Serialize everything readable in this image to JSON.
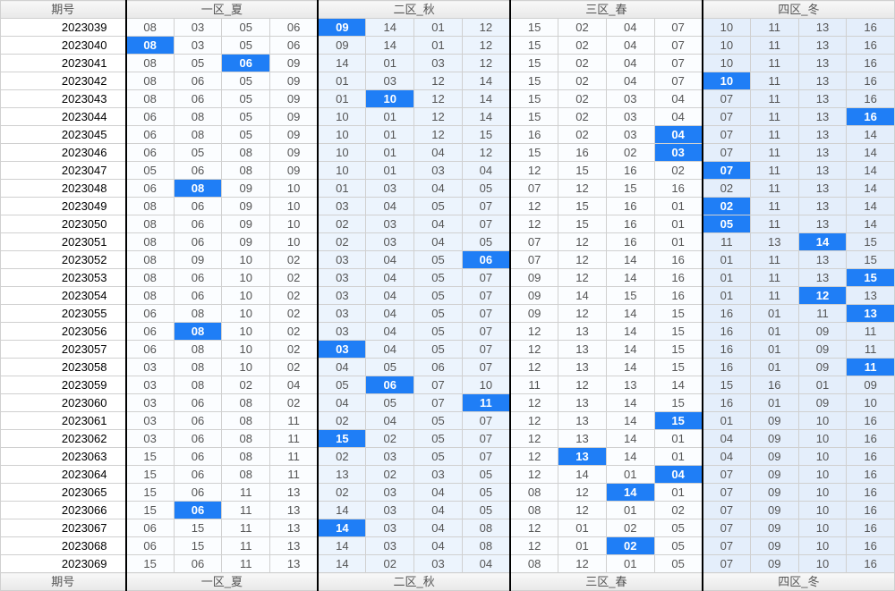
{
  "headers": {
    "period": "期号",
    "zones": [
      "一区_夏",
      "二区_秋",
      "三区_春",
      "四区_冬"
    ]
  },
  "zone_classes": [
    "z1",
    "z2",
    "z3",
    "z4"
  ],
  "colors": {
    "header_bg_top": "#f8f8f8",
    "header_bg_bottom": "#e8e8e8",
    "border": "#d0d0d0",
    "zone_sep": "#000000",
    "z1_bg": "#fbfdff",
    "z2_bg": "#ecf4fd",
    "z3_bg": "#fbfdff",
    "z4_bg": "#e4eefb",
    "highlight_bg": "#1f7ef6",
    "highlight_text": "#ffffff",
    "text": "#555555"
  },
  "rows": [
    {
      "p": "2023039",
      "c": [
        "08",
        "03",
        "05",
        "06",
        "09",
        "14",
        "01",
        "12",
        "15",
        "02",
        "04",
        "07",
        "10",
        "11",
        "13",
        "16"
      ],
      "h": [
        4
      ]
    },
    {
      "p": "2023040",
      "c": [
        "08",
        "03",
        "05",
        "06",
        "09",
        "14",
        "01",
        "12",
        "15",
        "02",
        "04",
        "07",
        "10",
        "11",
        "13",
        "16"
      ],
      "h": [
        0
      ]
    },
    {
      "p": "2023041",
      "c": [
        "08",
        "05",
        "06",
        "09",
        "14",
        "01",
        "03",
        "12",
        "15",
        "02",
        "04",
        "07",
        "10",
        "11",
        "13",
        "16"
      ],
      "h": [
        2
      ]
    },
    {
      "p": "2023042",
      "c": [
        "08",
        "06",
        "05",
        "09",
        "01",
        "03",
        "12",
        "14",
        "15",
        "02",
        "04",
        "07",
        "10",
        "11",
        "13",
        "16"
      ],
      "h": [
        12
      ]
    },
    {
      "p": "2023043",
      "c": [
        "08",
        "06",
        "05",
        "09",
        "01",
        "10",
        "12",
        "14",
        "15",
        "02",
        "03",
        "04",
        "07",
        "11",
        "13",
        "16"
      ],
      "h": [
        5
      ]
    },
    {
      "p": "2023044",
      "c": [
        "06",
        "08",
        "05",
        "09",
        "10",
        "01",
        "12",
        "14",
        "15",
        "02",
        "03",
        "04",
        "07",
        "11",
        "13",
        "16"
      ],
      "h": [
        15
      ]
    },
    {
      "p": "2023045",
      "c": [
        "06",
        "08",
        "05",
        "09",
        "10",
        "01",
        "12",
        "15",
        "16",
        "02",
        "03",
        "04",
        "07",
        "11",
        "13",
        "14"
      ],
      "h": [
        11
      ]
    },
    {
      "p": "2023046",
      "c": [
        "06",
        "05",
        "08",
        "09",
        "10",
        "01",
        "04",
        "12",
        "15",
        "16",
        "02",
        "03",
        "07",
        "11",
        "13",
        "14"
      ],
      "h": [
        11
      ]
    },
    {
      "p": "2023047",
      "c": [
        "05",
        "06",
        "08",
        "09",
        "10",
        "01",
        "03",
        "04",
        "12",
        "15",
        "16",
        "02",
        "07",
        "11",
        "13",
        "14"
      ],
      "h": [
        12
      ]
    },
    {
      "p": "2023048",
      "c": [
        "06",
        "08",
        "09",
        "10",
        "01",
        "03",
        "04",
        "05",
        "07",
        "12",
        "15",
        "16",
        "02",
        "11",
        "13",
        "14"
      ],
      "h": [
        1
      ]
    },
    {
      "p": "2023049",
      "c": [
        "08",
        "06",
        "09",
        "10",
        "03",
        "04",
        "05",
        "07",
        "12",
        "15",
        "16",
        "01",
        "02",
        "11",
        "13",
        "14"
      ],
      "h": [
        12
      ]
    },
    {
      "p": "2023050",
      "c": [
        "08",
        "06",
        "09",
        "10",
        "02",
        "03",
        "04",
        "07",
        "12",
        "15",
        "16",
        "01",
        "05",
        "11",
        "13",
        "14"
      ],
      "h": [
        12
      ]
    },
    {
      "p": "2023051",
      "c": [
        "08",
        "06",
        "09",
        "10",
        "02",
        "03",
        "04",
        "05",
        "07",
        "12",
        "16",
        "01",
        "11",
        "13",
        "14",
        "15"
      ],
      "h": [
        14
      ]
    },
    {
      "p": "2023052",
      "c": [
        "08",
        "09",
        "10",
        "02",
        "03",
        "04",
        "05",
        "06",
        "07",
        "12",
        "14",
        "16",
        "01",
        "11",
        "13",
        "15"
      ],
      "h": [
        7
      ]
    },
    {
      "p": "2023053",
      "c": [
        "08",
        "06",
        "10",
        "02",
        "03",
        "04",
        "05",
        "07",
        "09",
        "12",
        "14",
        "16",
        "01",
        "11",
        "13",
        "15"
      ],
      "h": [
        15
      ]
    },
    {
      "p": "2023054",
      "c": [
        "08",
        "06",
        "10",
        "02",
        "03",
        "04",
        "05",
        "07",
        "09",
        "14",
        "15",
        "16",
        "01",
        "11",
        "12",
        "13"
      ],
      "h": [
        14
      ]
    },
    {
      "p": "2023055",
      "c": [
        "06",
        "08",
        "10",
        "02",
        "03",
        "04",
        "05",
        "07",
        "09",
        "12",
        "14",
        "15",
        "16",
        "01",
        "11",
        "13"
      ],
      "h": [
        15
      ]
    },
    {
      "p": "2023056",
      "c": [
        "06",
        "08",
        "10",
        "02",
        "03",
        "04",
        "05",
        "07",
        "12",
        "13",
        "14",
        "15",
        "16",
        "01",
        "09",
        "11"
      ],
      "h": [
        1
      ]
    },
    {
      "p": "2023057",
      "c": [
        "06",
        "08",
        "10",
        "02",
        "03",
        "04",
        "05",
        "07",
        "12",
        "13",
        "14",
        "15",
        "16",
        "01",
        "09",
        "11"
      ],
      "h": [
        4
      ]
    },
    {
      "p": "2023058",
      "c": [
        "03",
        "08",
        "10",
        "02",
        "04",
        "05",
        "06",
        "07",
        "12",
        "13",
        "14",
        "15",
        "16",
        "01",
        "09",
        "11"
      ],
      "h": [
        15
      ]
    },
    {
      "p": "2023059",
      "c": [
        "03",
        "08",
        "02",
        "04",
        "05",
        "06",
        "07",
        "10",
        "11",
        "12",
        "13",
        "14",
        "15",
        "16",
        "01",
        "09"
      ],
      "h": [
        5
      ]
    },
    {
      "p": "2023060",
      "c": [
        "03",
        "06",
        "08",
        "02",
        "04",
        "05",
        "07",
        "11",
        "12",
        "13",
        "14",
        "15",
        "16",
        "01",
        "09",
        "10"
      ],
      "h": [
        7
      ]
    },
    {
      "p": "2023061",
      "c": [
        "03",
        "06",
        "08",
        "11",
        "02",
        "04",
        "05",
        "07",
        "12",
        "13",
        "14",
        "15",
        "01",
        "09",
        "10",
        "16"
      ],
      "h": [
        11
      ]
    },
    {
      "p": "2023062",
      "c": [
        "03",
        "06",
        "08",
        "11",
        "15",
        "02",
        "05",
        "07",
        "12",
        "13",
        "14",
        "01",
        "04",
        "09",
        "10",
        "16"
      ],
      "h": [
        4
      ]
    },
    {
      "p": "2023063",
      "c": [
        "15",
        "06",
        "08",
        "11",
        "02",
        "03",
        "05",
        "07",
        "12",
        "13",
        "14",
        "01",
        "04",
        "09",
        "10",
        "16"
      ],
      "h": [
        9
      ]
    },
    {
      "p": "2023064",
      "c": [
        "15",
        "06",
        "08",
        "11",
        "13",
        "02",
        "03",
        "05",
        "12",
        "14",
        "01",
        "04",
        "07",
        "09",
        "10",
        "16"
      ],
      "h": [
        11
      ]
    },
    {
      "p": "2023065",
      "c": [
        "15",
        "06",
        "11",
        "13",
        "02",
        "03",
        "04",
        "05",
        "08",
        "12",
        "14",
        "01",
        "07",
        "09",
        "10",
        "16"
      ],
      "h": [
        10
      ]
    },
    {
      "p": "2023066",
      "c": [
        "15",
        "06",
        "11",
        "13",
        "14",
        "03",
        "04",
        "05",
        "08",
        "12",
        "01",
        "02",
        "07",
        "09",
        "10",
        "16"
      ],
      "h": [
        1
      ]
    },
    {
      "p": "2023067",
      "c": [
        "06",
        "15",
        "11",
        "13",
        "14",
        "03",
        "04",
        "08",
        "12",
        "01",
        "02",
        "05",
        "07",
        "09",
        "10",
        "16"
      ],
      "h": [
        4
      ]
    },
    {
      "p": "2023068",
      "c": [
        "06",
        "15",
        "11",
        "13",
        "14",
        "03",
        "04",
        "08",
        "12",
        "01",
        "02",
        "05",
        "07",
        "09",
        "10",
        "16"
      ],
      "h": [
        10
      ]
    },
    {
      "p": "2023069",
      "c": [
        "15",
        "06",
        "11",
        "13",
        "14",
        "02",
        "03",
        "04",
        "08",
        "12",
        "01",
        "05",
        "07",
        "09",
        "10",
        "16"
      ],
      "h": []
    }
  ]
}
